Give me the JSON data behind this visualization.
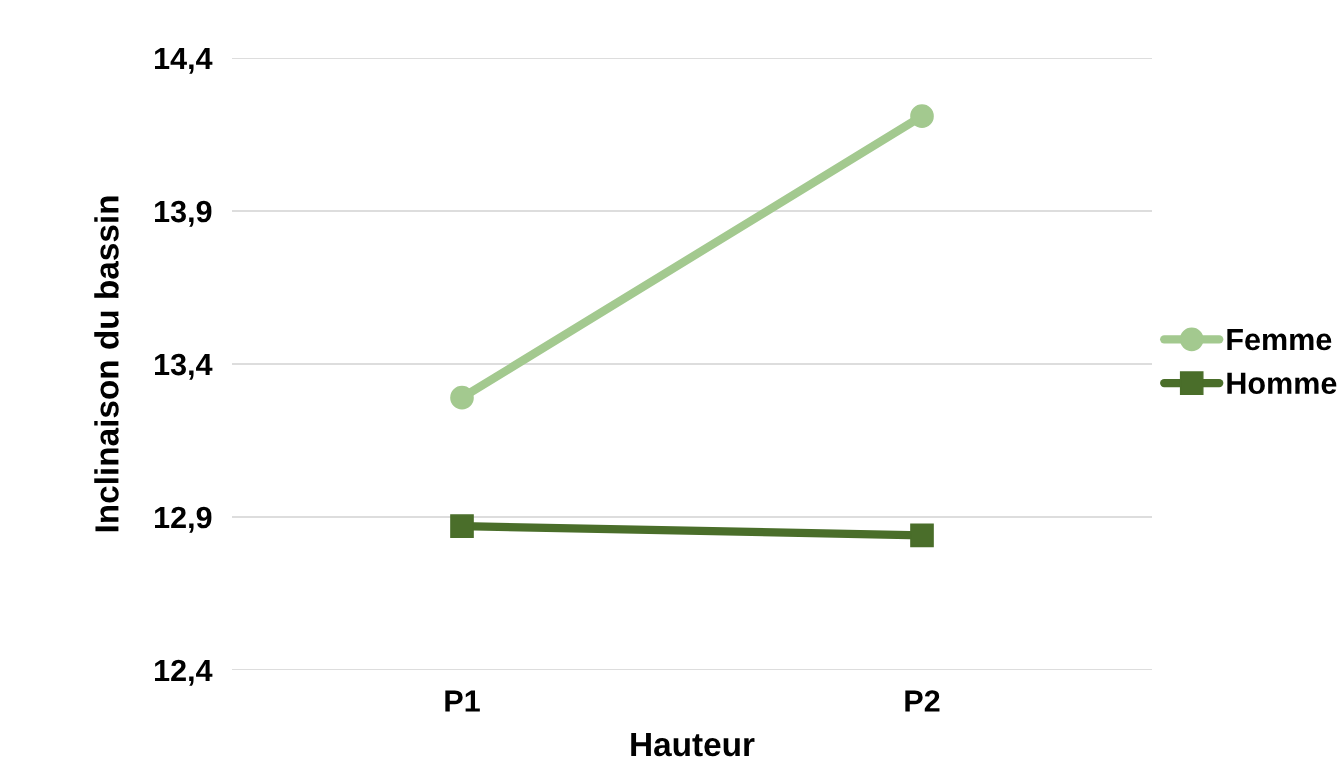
{
  "chart_data": {
    "type": "line",
    "xlabel": "Hauteur",
    "ylabel": "Inclinaison du bassin",
    "categories": [
      "P1",
      "P2"
    ],
    "series": [
      {
        "name": "Femme",
        "color": "#a3c98f",
        "marker": "circle",
        "values": [
          13.29,
          14.21
        ]
      },
      {
        "name": "Homme",
        "color": "#4a6e2a",
        "marker": "square",
        "values": [
          12.87,
          12.84
        ]
      }
    ],
    "ylim": [
      12.4,
      14.4
    ],
    "yticks": [
      {
        "value": 12.4,
        "label": "12,4"
      },
      {
        "value": 12.9,
        "label": "12,9"
      },
      {
        "value": 13.4,
        "label": "13,4"
      },
      {
        "value": 13.9,
        "label": "13,9"
      },
      {
        "value": 14.4,
        "label": "14,4"
      }
    ],
    "grid": "y",
    "legend": "right"
  }
}
